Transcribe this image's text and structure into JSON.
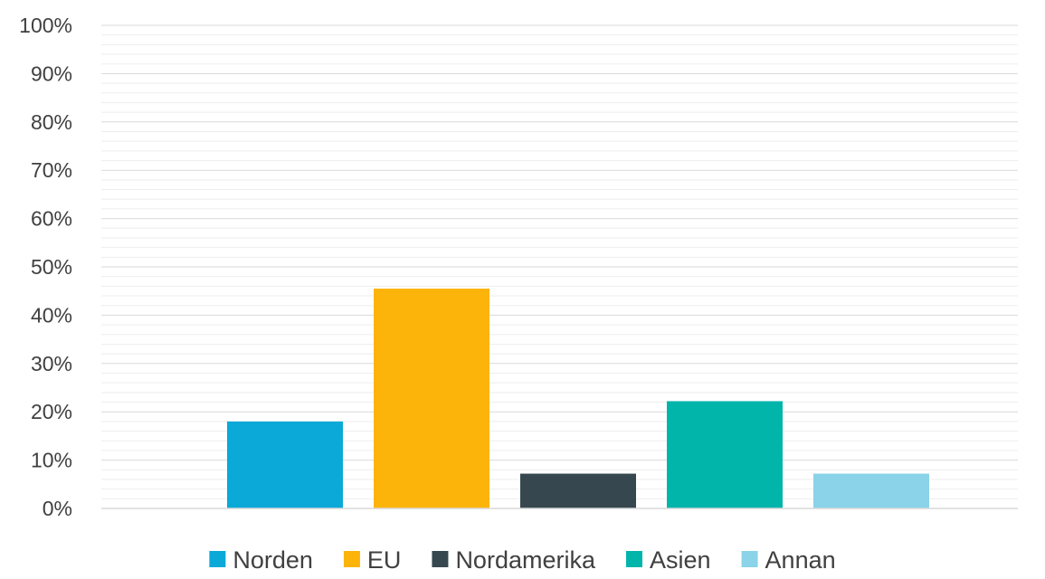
{
  "chart_data": {
    "type": "bar",
    "title": "",
    "xlabel": "",
    "ylabel": "",
    "categories": [
      "Norden",
      "EU",
      "Nordamerika",
      "Asien",
      "Annan"
    ],
    "values": [
      18,
      45.5,
      7.2,
      22.2,
      7.2
    ],
    "colors": [
      "#0aa9d8",
      "#fcb40a",
      "#37474f",
      "#02b5ab",
      "#8ad3e8"
    ],
    "ylim": [
      0,
      100
    ],
    "yticks": [
      "0%",
      "10%",
      "20%",
      "30%",
      "40%",
      "50%",
      "60%",
      "70%",
      "80%",
      "90%",
      "100%"
    ],
    "grid": true,
    "minor_grid": true,
    "legend_position": "bottom"
  }
}
